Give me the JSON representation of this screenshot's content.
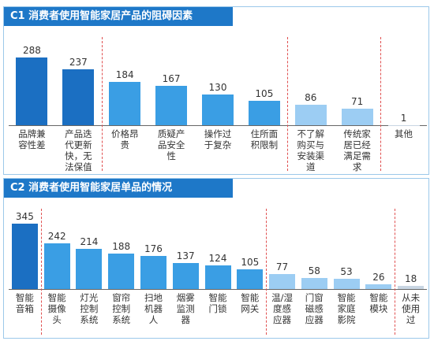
{
  "chart_data": [
    {
      "type": "bar",
      "title": "C1 消费者使用智能家居产品的阻碍因素",
      "categories": [
        "品牌兼容性差",
        "产品迭代更新快，无法保值",
        "价格昂贵",
        "质疑产品安全性",
        "操作过于复杂",
        "住所面积限制",
        "不了解购买与安装渠道",
        "传统家居已经满足需求",
        "其他"
      ],
      "values": [
        288,
        237,
        184,
        167,
        130,
        105,
        86,
        71,
        1
      ],
      "colors": [
        "#1b6fc2",
        "#1b6fc2",
        "#3a9ee4",
        "#3a9ee4",
        "#3a9ee4",
        "#3a9ee4",
        "#9ccdf3",
        "#9ccdf3",
        "#c9d6e3"
      ]
    },
    {
      "type": "bar",
      "title": "C2 消费者使用智能家居单品的情况",
      "categories": [
        "智能音箱",
        "智能摄像头",
        "灯光控制系统",
        "窗帘控制系统",
        "扫地机器人",
        "烟雾监测器",
        "智能门锁",
        "智能网关",
        "温/湿度感应器",
        "门窗磁感应器",
        "智能家庭影院",
        "智能模块",
        "从未使用过"
      ],
      "values": [
        345,
        242,
        214,
        188,
        176,
        137,
        124,
        105,
        77,
        58,
        53,
        26,
        18
      ],
      "colors": [
        "#1b6fc2",
        "#3a9ee4",
        "#3a9ee4",
        "#3a9ee4",
        "#3a9ee4",
        "#3a9ee4",
        "#3a9ee4",
        "#3a9ee4",
        "#9ccdf3",
        "#9ccdf3",
        "#9ccdf3",
        "#9ccdf3",
        "#c9d6e3"
      ]
    }
  ]
}
